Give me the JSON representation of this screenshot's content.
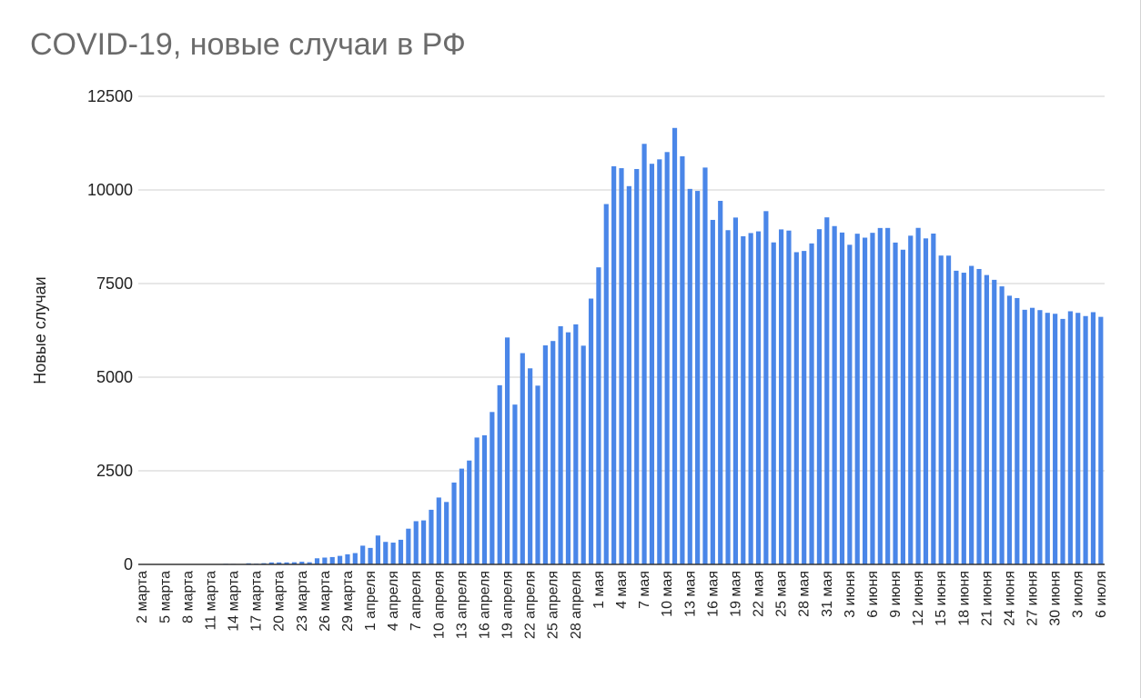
{
  "chart_data": {
    "type": "bar",
    "title": "COVID-19, новые случаи в РФ",
    "xlabel": "",
    "ylabel": "Новые случаи",
    "ylim": [
      0,
      12500
    ],
    "yticks": [
      0,
      2500,
      5000,
      7500,
      10000,
      12500
    ],
    "grid": true,
    "legend": "none",
    "bar_color": "#4a86e8",
    "start_label": "2 марта",
    "tick_every": 3,
    "categories": [
      "2 марта",
      "3 марта",
      "4 марта",
      "5 марта",
      "6 марта",
      "7 марта",
      "8 марта",
      "9 марта",
      "10 марта",
      "11 марта",
      "12 марта",
      "13 марта",
      "14 марта",
      "15 марта",
      "16 марта",
      "17 марта",
      "18 марта",
      "19 марта",
      "20 марта",
      "21 марта",
      "22 марта",
      "23 марта",
      "24 марта",
      "25 марта",
      "26 марта",
      "27 марта",
      "28 марта",
      "29 марта",
      "30 марта",
      "31 марта",
      "1 апреля",
      "2 апреля",
      "3 апреля",
      "4 апреля",
      "5 апреля",
      "6 апреля",
      "7 апреля",
      "8 апреля",
      "9 апреля",
      "10 апреля",
      "11 апреля",
      "12 апреля",
      "13 апреля",
      "14 апреля",
      "15 апреля",
      "16 апреля",
      "17 апреля",
      "18 апреля",
      "19 апреля",
      "20 апреля",
      "21 апреля",
      "22 апреля",
      "23 апреля",
      "24 апреля",
      "25 апреля",
      "26 апреля",
      "27 апреля",
      "28 апреля",
      "29 апреля",
      "30 апреля",
      "1 мая",
      "2 мая",
      "3 мая",
      "4 мая",
      "5 мая",
      "6 мая",
      "7 мая",
      "8 мая",
      "9 мая",
      "10 мая",
      "11 мая",
      "12 мая",
      "13 мая",
      "14 мая",
      "15 мая",
      "16 мая",
      "17 мая",
      "18 мая",
      "19 мая",
      "20 мая",
      "21 мая",
      "22 мая",
      "23 мая",
      "24 мая",
      "25 мая",
      "26 мая",
      "27 мая",
      "28 мая",
      "29 мая",
      "30 мая",
      "31 мая",
      "1 июня",
      "2 июня",
      "3 июня",
      "4 июня",
      "5 июня",
      "6 июня",
      "7 июня",
      "8 июня",
      "9 июня",
      "10 июня",
      "11 июня",
      "12 июня",
      "13 июня",
      "14 июня",
      "15 июня",
      "16 июня",
      "17 июня",
      "18 июня",
      "19 июня",
      "20 июня",
      "21 июня",
      "22 июня",
      "23 июня",
      "24 июня",
      "25 июня",
      "26 июня",
      "27 июня",
      "28 июня",
      "29 июня",
      "30 июня",
      "1 июля",
      "2 июля",
      "3 июля",
      "4 июля",
      "5 июля",
      "6 июля"
    ],
    "values": [
      2,
      0,
      1,
      3,
      0,
      4,
      3,
      3,
      7,
      2,
      6,
      17,
      14,
      4,
      30,
      20,
      33,
      52,
      53,
      53,
      57,
      71,
      57,
      163,
      182,
      196,
      228,
      270,
      302,
      500,
      440,
      771,
      601,
      582,
      658,
      954,
      1154,
      1175,
      1459,
      1786,
      1667,
      2186,
      2558,
      2774,
      3388,
      3448,
      4070,
      4785,
      6060,
      4268,
      5642,
      5236,
      4774,
      5849,
      5966,
      6361,
      6198,
      6411,
      5841,
      7099,
      7933,
      9623,
      10633,
      10581,
      10102,
      10559,
      11231,
      10699,
      10817,
      11012,
      11656,
      10899,
      10028,
      9974,
      10598,
      9200,
      9709,
      8926,
      9263,
      8764,
      8849,
      8894,
      9434,
      8599,
      8946,
      8915,
      8338,
      8371,
      8572,
      8952,
      9268,
      9035,
      8863,
      8536,
      8831,
      8726,
      8855,
      8984,
      8985,
      8595,
      8404,
      8779,
      8987,
      8706,
      8835,
      8248,
      8246,
      7843,
      7790,
      7972,
      7889,
      7728,
      7600,
      7425,
      7176,
      7113,
      6800,
      6852,
      6791,
      6719,
      6693,
      6556,
      6760,
      6718,
      6632,
      6736,
      6611
    ]
  }
}
